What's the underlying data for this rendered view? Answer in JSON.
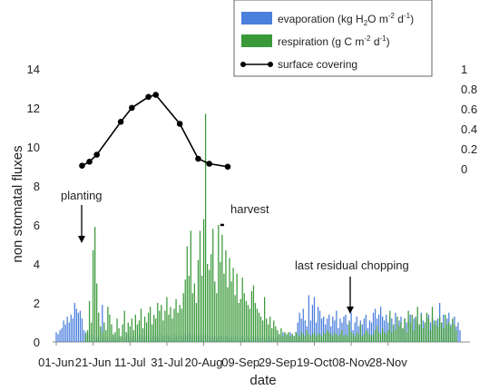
{
  "chart_data": {
    "type": "bar",
    "x_start": "01-Jun",
    "x_tick_labels": [
      "01-Jun",
      "21-Jun",
      "11-Jul",
      "31-Jul",
      "20-Aug",
      "09-Sep",
      "29-Sep",
      "19-Oct",
      "08-Nov",
      "28-Nov"
    ],
    "xlabel": "date",
    "ylabel": "non stomatal fluxes",
    "ylim": [
      0,
      14
    ],
    "y_ticks": [
      0,
      2,
      4,
      6,
      8,
      10,
      12,
      14
    ],
    "y2lim": [
      0,
      1
    ],
    "y2_ticks": [
      "0",
      "0.2",
      "0.4",
      "0.6",
      "0.8",
      "1"
    ],
    "legend": [
      {
        "label": "evaporation (kg H",
        "sub": "2",
        "label2": "O m",
        "sup1": "-2",
        "label3": " d",
        "sup2": "-1",
        "label4": ")"
      },
      {
        "label": "respiration (g C m",
        "sup1": "-2",
        "label3": " d",
        "sup2": "-1",
        "label4": ")"
      },
      {
        "label": "surface covering"
      }
    ],
    "legend_position": "top-right",
    "colors": {
      "evaporation": "#4a7fdc",
      "respiration": "#3a9a3a",
      "surface_covering": "#000000"
    },
    "series": [
      {
        "name": "evaporation (kg H2O m-2 d-1)",
        "bar_values": [
          0.5,
          0.4,
          0.6,
          0.7,
          1.1,
          0.9,
          1.3,
          1.0,
          1.4,
          1.2,
          2.0,
          1.7,
          1.5,
          1.6,
          1.2,
          0.6,
          0.5,
          0.4,
          0.3,
          0.4,
          0.3,
          0.2,
          0.2,
          0.3,
          0.1,
          1.9,
          0.3,
          0.2,
          0.3,
          0.1,
          0.2,
          0.3,
          0.2,
          0.2,
          0.3,
          0.2,
          0.3,
          0.2,
          0.3,
          0.4,
          0.3,
          0.2,
          0.3,
          0.3,
          0.2,
          0.3,
          0.4,
          0.3,
          0.3,
          0.4,
          0.3,
          0.2,
          0.3,
          0.4,
          0.3,
          0.3,
          0.2,
          0.4,
          0.3,
          0.3,
          0.4,
          0.3,
          0.3,
          0.2,
          0.4,
          0.3,
          0.3,
          0.4,
          0.3,
          0.3,
          0.4,
          0.3,
          0.5,
          0.4,
          0.3,
          0.4,
          0.3,
          0.3,
          0.4,
          0.3,
          0.4,
          0.3,
          0.3,
          0.2,
          0.3,
          0.2,
          0.3,
          0.2,
          0.3,
          0.3,
          0.3,
          0.2,
          0.3,
          0.3,
          0.2,
          0.3,
          0.2,
          0.3,
          0.3,
          0.2,
          0.2,
          0.3,
          0.2,
          0.2,
          0.3,
          0.2,
          0.2,
          0.3,
          0.2,
          0.3,
          0.2,
          0.2,
          0.3,
          0.2,
          0.2,
          0.3,
          0.2,
          0.3,
          0.2,
          0.2,
          0.3,
          0.4,
          0.3,
          0.5,
          0.4,
          0.3,
          0.3,
          0.5,
          0.4,
          0.3,
          0.5,
          1.0,
          1.5,
          1.2,
          1.7,
          1.1,
          0.8,
          2.4,
          1.1,
          1.9,
          2.3,
          1.0,
          1.8,
          1.6,
          1.2,
          1.3,
          0.9,
          1.2,
          1.4,
          0.8,
          1.3,
          1.1,
          1.6,
          0.7,
          1.2,
          1.0,
          1.3,
          1.4,
          0.9,
          1.1,
          1.5,
          0.6,
          1.0,
          1.3,
          0.8,
          1.1,
          0.9,
          1.2,
          1.4,
          0.7,
          1.1,
          1.0,
          1.5,
          1.7,
          1.2,
          1.4,
          1.8,
          1.3,
          1.1,
          1.4,
          1.0,
          1.3,
          1.2,
          0.8,
          1.5,
          0.9,
          1.1,
          1.3,
          0.7,
          1.2,
          1.0,
          1.1,
          1.4,
          0.9,
          1.2,
          1.3,
          1.0,
          0.8,
          1.5,
          1.1,
          0.9,
          1.2,
          1.4,
          1.0,
          1.3,
          1.1,
          0.9,
          1.2,
          2.0,
          1.0,
          1.4,
          0.7,
          1.2,
          1.5,
          0.9,
          1.1,
          1.3,
          0.8,
          1.0,
          0.6
        ]
      },
      {
        "name": "respiration (g C m-2 d-1)",
        "bar_values": [
          0,
          0,
          0,
          0,
          0,
          0,
          0,
          0,
          0,
          0,
          0,
          0,
          0,
          0,
          0,
          0,
          0.4,
          0.6,
          2.1,
          1.0,
          4.7,
          5.9,
          3.0,
          1.5,
          0.8,
          0.5,
          1.0,
          0.6,
          1.8,
          1.4,
          0.9,
          0.4,
          0.5,
          1.2,
          0.7,
          0.3,
          0.9,
          1.6,
          0.5,
          1.0,
          0.8,
          1.2,
          0.6,
          1.4,
          0.9,
          1.1,
          1.7,
          0.7,
          1.3,
          1.0,
          1.5,
          1.8,
          0.9,
          1.4,
          1.2,
          2.0,
          1.6,
          1.9,
          1.1,
          1.6,
          2.3,
          1.4,
          1.8,
          1.2,
          1.7,
          2.2,
          1.5,
          1.9,
          1.7,
          2.5,
          3.2,
          4.9,
          3.4,
          5.7,
          2.5,
          3.0,
          2.0,
          4.2,
          5.7,
          3.4,
          6.3,
          11.7,
          4.0,
          3.7,
          4.5,
          5.8,
          3.1,
          2.5,
          6.0,
          4.1,
          5.5,
          3.5,
          4.7,
          2.8,
          4.3,
          3.1,
          3.8,
          2.4,
          3.5,
          2.0,
          2.2,
          3.3,
          2.5,
          2.1,
          1.9,
          1.7,
          2.6,
          2.9,
          2.0,
          1.7,
          1.5,
          1.3,
          1.1,
          2.3,
          1.2,
          0.9,
          1.3,
          0.7,
          1.1,
          0.8,
          0.6,
          0.4,
          0.7,
          0.3,
          0.5,
          0.4,
          0.5,
          0.3,
          0.4,
          0.3,
          0.5,
          0.4,
          0.3,
          0.5,
          0.4,
          0.3,
          0.6,
          0.4,
          0.3,
          0.4,
          0.5,
          0.3,
          0.4,
          0.4,
          0.3,
          0.5,
          0.4,
          0.6,
          0.5,
          0.4,
          0.3,
          0.5,
          0.4,
          0.3,
          0.4,
          0.6,
          0.3,
          0.4,
          0.3,
          1.0,
          0.5,
          0.4,
          0.3,
          0.5,
          0.4,
          0.9,
          0.3,
          0.4,
          0.6,
          0.5,
          0.4,
          0.3,
          0.4,
          0.6,
          0.8,
          0.5,
          0.4,
          0.7,
          0.5,
          0.4,
          0.6,
          1.6,
          0.5,
          0.9,
          0.6,
          1.3,
          0.8,
          1.0,
          0.7,
          1.2,
          0.5,
          1.6,
          1.0,
          1.4,
          0.6,
          1.2,
          1.8,
          0.9,
          1.4,
          0.7,
          1.0,
          1.5,
          1.2,
          0.6,
          1.8,
          0.9,
          1.1,
          0.8,
          1.3,
          1.0,
          0.7,
          1.4,
          0.9,
          1.0,
          0.8,
          1.2,
          0.9,
          0.6
        ]
      },
      {
        "name": "surface covering",
        "axis": "right",
        "points": [
          {
            "x": "15-Jun",
            "y": 0.03
          },
          {
            "x": "19-Jun",
            "y": 0.07
          },
          {
            "x": "23-Jun",
            "y": 0.14
          },
          {
            "x": "06-Jul",
            "y": 0.47
          },
          {
            "x": "12-Jul",
            "y": 0.61
          },
          {
            "x": "21-Jul",
            "y": 0.72
          },
          {
            "x": "25-Jul",
            "y": 0.74
          },
          {
            "x": "07-Aug",
            "y": 0.45
          },
          {
            "x": "17-Aug",
            "y": 0.1
          },
          {
            "x": "23-Aug",
            "y": 0.05
          },
          {
            "x": "02-Sep",
            "y": 0.02
          }
        ]
      }
    ],
    "harvest_marker": {
      "x_start": "29-Aug",
      "x_end": "31-Aug",
      "y": 6
    },
    "annotations": {
      "planting": "planting",
      "harvest": "harvest",
      "last_chopping": "last residual chopping"
    }
  }
}
